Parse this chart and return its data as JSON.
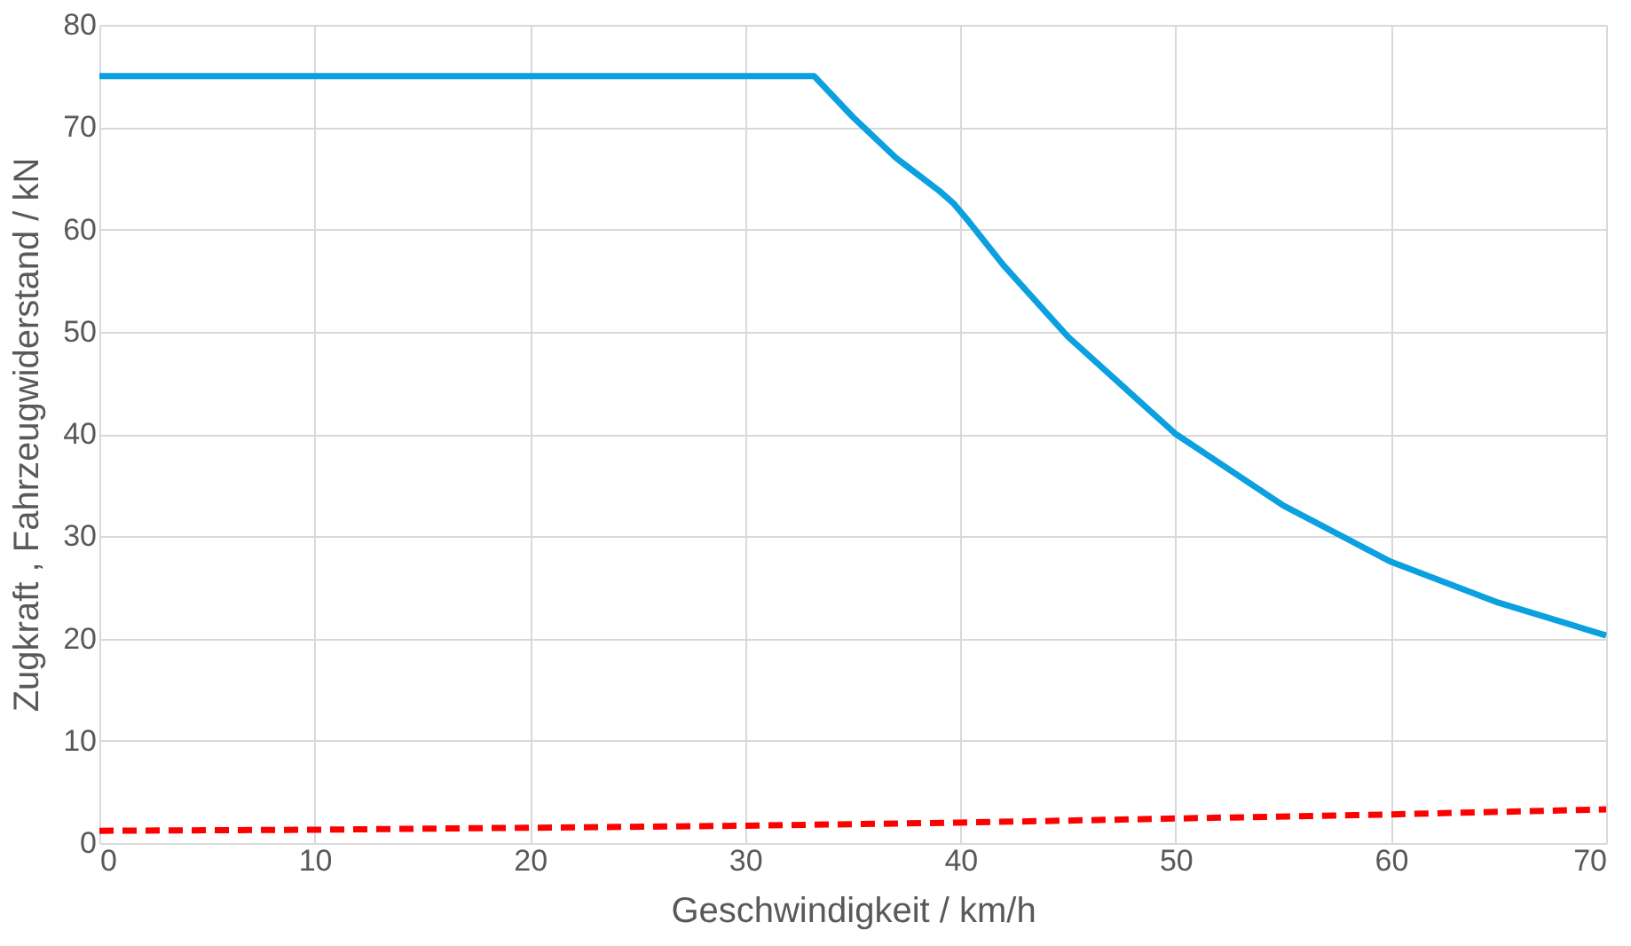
{
  "chart_data": {
    "type": "line",
    "xlabel": "Geschwindigkeit / km/h",
    "ylabel": "Zugkraft , Fahrzeugwiderstand / kN",
    "xlim": [
      0,
      70
    ],
    "xticks": [
      0,
      10,
      20,
      30,
      40,
      50,
      60,
      70
    ],
    "ylim": [
      0,
      80
    ],
    "yticks": [
      0,
      10,
      20,
      30,
      40,
      50,
      60,
      70,
      80
    ],
    "grid": true,
    "series": [
      {
        "color": "#0ba0e0",
        "line_style": "solid",
        "x": [
          0,
          10,
          20,
          30,
          33.2,
          35,
          37,
          39,
          39.7,
          40.3,
          42,
          45,
          50,
          55,
          60,
          65,
          70
        ],
        "values": [
          75,
          75,
          75,
          75,
          75,
          71,
          67,
          63.8,
          62.5,
          61,
          56.5,
          49.5,
          40,
          33,
          27.5,
          23.5,
          20.3
        ]
      },
      {
        "color": "#ff0000",
        "line_style": "dashed",
        "x": [
          0,
          10,
          20,
          30,
          40,
          50,
          60,
          70
        ],
        "values": [
          1.2,
          1.3,
          1.5,
          1.7,
          2.0,
          2.4,
          2.8,
          3.3
        ]
      }
    ]
  }
}
